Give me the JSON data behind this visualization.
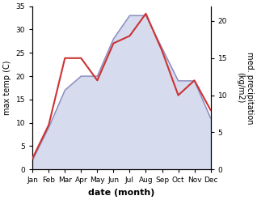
{
  "months": [
    "Jan",
    "Feb",
    "Mar",
    "Apr",
    "May",
    "Jun",
    "Jul",
    "Aug",
    "Sep",
    "Oct",
    "Nov",
    "Dec"
  ],
  "temperature": [
    2,
    9,
    17,
    20,
    20,
    28,
    33,
    33,
    26,
    19,
    19,
    11
  ],
  "precipitation": [
    1.5,
    6,
    15,
    15,
    12,
    17,
    18,
    21,
    16,
    10,
    12,
    8
  ],
  "temp_fill_color": "#c5cce8",
  "temp_line_color": "#8888bb",
  "precip_color": "#cc3333",
  "xlabel": "date (month)",
  "ylabel_left": "max temp (C)",
  "ylabel_right": "med. precipitation\n(kg/m2)",
  "ylim_left": [
    0,
    35
  ],
  "ylim_right": [
    0,
    22
  ],
  "yticks_left": [
    0,
    5,
    10,
    15,
    20,
    25,
    30,
    35
  ],
  "yticks_right": [
    0,
    5,
    10,
    15,
    20
  ],
  "figsize": [
    3.18,
    2.47
  ],
  "dpi": 100
}
